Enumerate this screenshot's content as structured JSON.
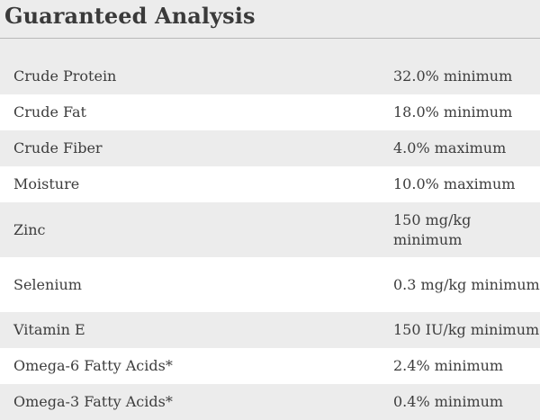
{
  "heading": "Guaranteed Analysis",
  "rows": [
    {
      "name": "Crude Protein",
      "value": "32.0% minimum"
    },
    {
      "name": "Crude Fat",
      "value": "18.0% minimum"
    },
    {
      "name": "Crude Fiber",
      "value": "4.0% maximum"
    },
    {
      "name": "Moisture",
      "value": "10.0% maximum"
    },
    {
      "name": "Zinc",
      "value": "150 mg/kg minimum"
    },
    {
      "name": "Selenium",
      "value": "0.3 mg/kg minimum"
    },
    {
      "name": "Vitamin E",
      "value": "150 IU/kg minimum"
    },
    {
      "name": "Omega-6 Fatty Acids*",
      "value": "2.4% minimum"
    },
    {
      "name": "Omega-3 Fatty Acids*",
      "value": "0.4% minimum"
    }
  ]
}
